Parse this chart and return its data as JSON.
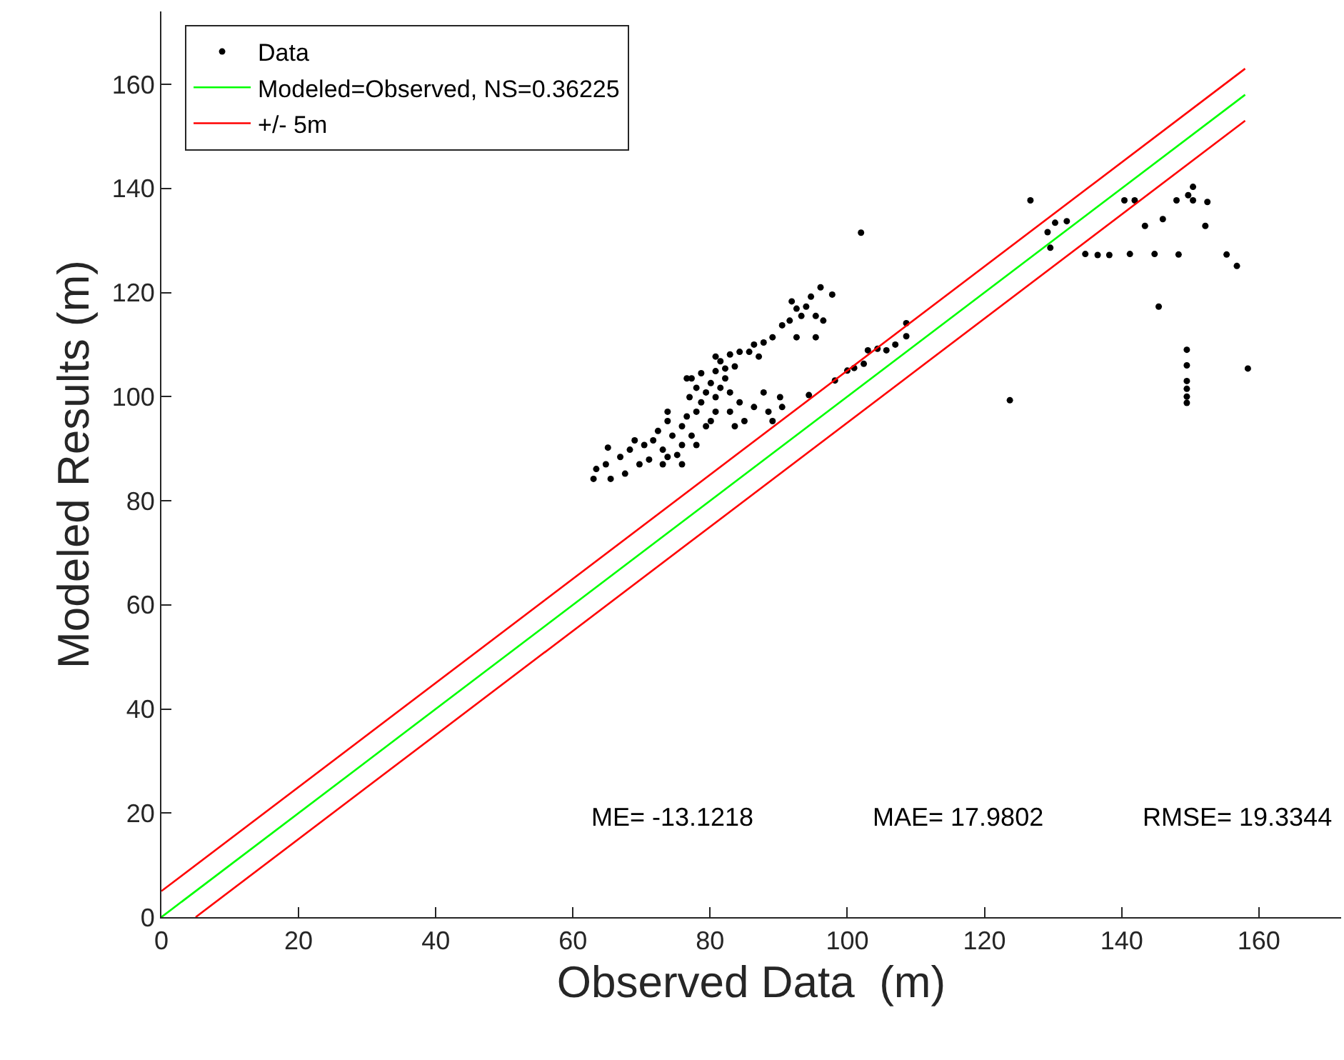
{
  "chart_data": {
    "type": "scatter",
    "xlabel": "Observed Data  (m)",
    "ylabel": "Modeled Results (m)",
    "xlim": [
      0,
      172
    ],
    "ylim": [
      0,
      174
    ],
    "xticks": [
      0,
      20,
      40,
      60,
      80,
      100,
      120,
      140,
      160
    ],
    "yticks": [
      0,
      20,
      40,
      60,
      80,
      100,
      120,
      140,
      160
    ],
    "grid": false,
    "legend": "top left",
    "annotations": [
      "ME= -13.1218",
      "MAE= 17.9802",
      "RMSE= 19.3344"
    ],
    "series": [
      {
        "name": "Data",
        "marker": "circle",
        "color": "#000000",
        "x": [
          96.1,
          97.8,
          94.7,
          94.0,
          92.6,
          93.3,
          91.6,
          90.5,
          92.6,
          95.4,
          89.1,
          87.8,
          86.4,
          85.7,
          87.1,
          84.3,
          82.9,
          83.6,
          81.5,
          80.8,
          82.2,
          80.1,
          79.4,
          80.8,
          78.7,
          78.0,
          76.6,
          77.3,
          75.9,
          73.8,
          74.5,
          72.4,
          71.7,
          70.4,
          73.1,
          75.2,
          71.1,
          68.3,
          66.9,
          64.8,
          63.4,
          65.5,
          67.6,
          69.7,
          65.1,
          76.6,
          78.0,
          82.9,
          84.3,
          86.4,
          85.0,
          82.9,
          80.8,
          79.4,
          77.3,
          75.9,
          78.0,
          80.1,
          83.6,
          88.5,
          90.2,
          90.5,
          89.1,
          87.8,
          95.4,
          96.5,
          91.9,
          81.5,
          73.1,
          73.8,
          75.9,
          63.0,
          69.0,
          80.8,
          82.2,
          78.7,
          77.0,
          73.8,
          94.4,
          98.2,
          100.0,
          101.0,
          102.4,
          103.0,
          104.4,
          105.7,
          107.0,
          108.6,
          108.6,
          102.0,
          126.7,
          130.3,
          132.0,
          129.2,
          129.6,
          134.7,
          136.5,
          138.2,
          141.2,
          144.8,
          148.3,
          155.3,
          156.8,
          140.4,
          141.9,
          143.4,
          146.0,
          148.0,
          150.4,
          150.4,
          152.5,
          149.7,
          152.2,
          145.4,
          123.7,
          158.4,
          149.5,
          149.5,
          149.5,
          149.5,
          149.5,
          149.5
        ],
        "values": [
          121.0,
          119.6,
          119.2,
          117.3,
          116.9,
          115.5,
          114.6,
          113.7,
          111.4,
          111.4,
          111.4,
          110.4,
          110.0,
          108.6,
          107.7,
          108.6,
          108.1,
          105.8,
          106.8,
          104.9,
          103.5,
          102.6,
          100.8,
          99.9,
          98.9,
          97.1,
          96.2,
          103.5,
          94.3,
          95.3,
          92.5,
          93.4,
          91.6,
          90.7,
          89.8,
          88.8,
          87.9,
          89.8,
          88.4,
          87.0,
          86.1,
          84.2,
          85.2,
          87.0,
          90.2,
          103.5,
          101.7,
          100.8,
          98.9,
          98.0,
          95.3,
          97.1,
          97.1,
          94.3,
          92.5,
          90.7,
          90.7,
          95.3,
          94.3,
          97.1,
          99.9,
          98.0,
          95.3,
          100.8,
          115.5,
          114.6,
          118.3,
          101.7,
          87.0,
          88.4,
          87.0,
          84.2,
          91.6,
          107.7,
          105.4,
          104.5,
          99.9,
          97.1,
          100.3,
          103.1,
          105.0,
          105.5,
          106.3,
          108.9,
          109.2,
          108.9,
          110.0,
          111.6,
          114.1,
          131.5,
          137.7,
          133.4,
          133.7,
          131.6,
          128.6,
          127.4,
          127.2,
          127.2,
          127.4,
          127.4,
          127.3,
          127.3,
          125.1,
          137.7,
          137.7,
          132.8,
          134.1,
          137.7,
          140.3,
          137.7,
          137.4,
          138.7,
          132.8,
          117.3,
          99.3,
          105.4,
          109.0,
          106.0,
          103.0,
          101.5,
          100.0,
          98.8
        ]
      },
      {
        "name": "Modeled=Observed, NS=0.36225",
        "type": "line",
        "marker": "none",
        "line_style": "solid",
        "color": "#00ff00",
        "x": [
          0,
          158
        ],
        "values": [
          0,
          158
        ]
      },
      {
        "name": "+/- 5m",
        "type": "line",
        "marker": "none",
        "line_style": "solid",
        "color": "#ff0000",
        "x": [
          0,
          158
        ],
        "values": [
          5,
          163
        ]
      },
      {
        "type": "line",
        "marker": "none",
        "line_style": "solid",
        "color": "#ff0000",
        "x": [
          5,
          158
        ],
        "values": [
          0,
          153
        ]
      }
    ]
  }
}
